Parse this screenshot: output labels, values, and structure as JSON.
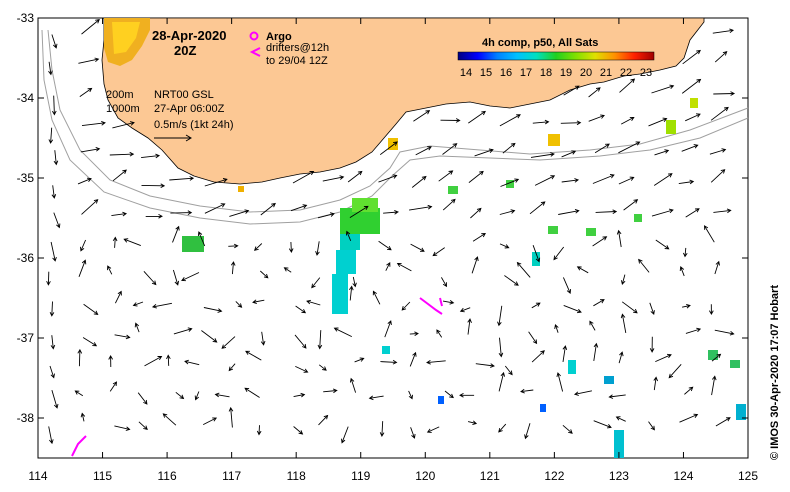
{
  "map": {
    "date_title": "28-Apr-2020",
    "time_title": "20Z",
    "legend_argo": "Argo",
    "legend_drifters": "drifters@12h",
    "legend_drifters_to": "to 29/04 12Z",
    "contours_200": "200m",
    "contours_1000": "1000m",
    "sst_source": "NRT00 GSL",
    "sst_time": "27-Apr 06:00Z",
    "vector_scale": "0.5m/s (1kt 24h)",
    "colorbar_title": "4h comp, p50, All Sats",
    "credit": "© IMOS 30-Apr-2020 17:07 Hobart"
  },
  "colorbar": {
    "ticks": [
      "14",
      "15",
      "16",
      "17",
      "18",
      "19",
      "20",
      "21",
      "22",
      "23"
    ],
    "stops": [
      "#000080",
      "#0000ff",
      "#0080ff",
      "#00c0ff",
      "#00e0c0",
      "#20d020",
      "#80e000",
      "#e0e000",
      "#ff9000",
      "#ff2000",
      "#a00000"
    ]
  },
  "axes": {
    "lon_ticks": [
      "114",
      "115",
      "116",
      "117",
      "118",
      "119",
      "120",
      "121",
      "122",
      "123",
      "124",
      "125"
    ],
    "lat_ticks": [
      "-33",
      "-34",
      "-35",
      "-36",
      "-37",
      "-38"
    ],
    "lon_range": [
      114,
      125
    ],
    "lat_range": [
      -38.5,
      -33
    ]
  },
  "colors": {
    "land": "#fcc894",
    "argo": "#ff00ff",
    "contour": "#a0a0a0"
  }
}
